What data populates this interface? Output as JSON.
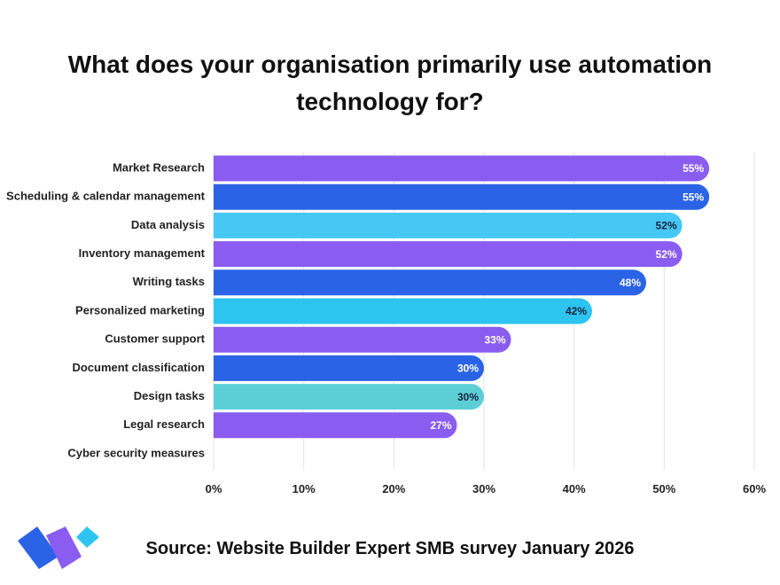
{
  "chart_data": {
    "type": "bar",
    "orientation": "horizontal",
    "title": "What does your organisation primarily use automation technology for?",
    "categories": [
      "Market Research",
      "Scheduling & calendar management",
      "Data analysis",
      "Inventory management",
      "Writing tasks",
      "Personalized marketing",
      "Customer support",
      "Document classification",
      "Design tasks",
      "Legal research",
      "Cyber security measures"
    ],
    "values": [
      55,
      55,
      52,
      52,
      48,
      42,
      33,
      30,
      30,
      27,
      null
    ],
    "value_labels": [
      "55%",
      "55%",
      "52%",
      "52%",
      "48%",
      "42%",
      "33%",
      "30%",
      "30%",
      "27%",
      null
    ],
    "colors": [
      "#8a5cf0",
      "#2b63e6",
      "#46c8f5",
      "#8a5cf0",
      "#2b63e6",
      "#2ec4f0",
      "#8a5cf0",
      "#2b63e6",
      "#5ccfd6",
      "#8a5cf0",
      null
    ],
    "xlim": [
      0,
      60
    ],
    "xticks": [
      {
        "value": 0,
        "label": "0%"
      },
      {
        "value": 10,
        "label": "10%"
      },
      {
        "value": 20,
        "label": "20%"
      },
      {
        "value": 30,
        "label": "30%"
      },
      {
        "value": 40,
        "label": "40%"
      },
      {
        "value": 50,
        "label": "50%"
      },
      {
        "value": 60,
        "label": "60%"
      }
    ],
    "grid": true,
    "source": "Source: Website Builder Expert SMB survey January 2026"
  }
}
